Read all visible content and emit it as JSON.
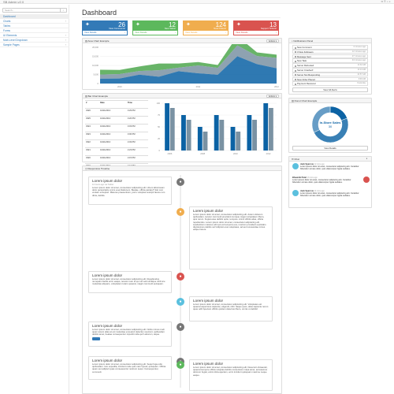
{
  "app": {
    "brand": "SB Admin v2.0"
  },
  "sidebar": {
    "search_placeholder": "Search...",
    "items": [
      {
        "label": "Dashboard"
      },
      {
        "label": "Charts"
      },
      {
        "label": "Tables"
      },
      {
        "label": "Forms"
      },
      {
        "label": "UI Elements"
      },
      {
        "label": "Multi-Level Dropdown"
      },
      {
        "label": "Sample Pages"
      }
    ]
  },
  "page": {
    "title": "Dashboard"
  },
  "stats": [
    {
      "num": "26",
      "label": "New Comments!",
      "footer": "View Details",
      "color": "#337ab7",
      "icon": "comments-icon"
    },
    {
      "num": "12",
      "label": "New Tasks!",
      "footer": "View Details",
      "color": "#5cb85c",
      "icon": "tasks-icon"
    },
    {
      "num": "124",
      "label": "New Orders!",
      "footer": "View Details",
      "color": "#f0ad4e",
      "icon": "cart-icon"
    },
    {
      "num": "13",
      "label": "Support Tickets!",
      "footer": "View Details",
      "color": "#d9534f",
      "icon": "support-icon"
    }
  ],
  "area_chart": {
    "header": "Area Chart Example",
    "actions": "Actions",
    "chart_data": {
      "type": "area",
      "x": [
        "2010 Q1",
        "2010 Q2",
        "2010 Q3",
        "2010 Q4",
        "2011 Q1",
        "2011 Q2",
        "2011 Q3",
        "2011 Q4",
        "2012 Q1",
        "2012 Q2"
      ],
      "xticks": [
        "2010",
        "2011",
        "2012"
      ],
      "yticks": [
        "0",
        "5,000",
        "10,000",
        "15,000",
        "20,000"
      ],
      "ylim": [
        0,
        20000
      ],
      "series": [
        {
          "values": [
            2666,
            2778,
            4912,
            3767,
            6810,
            5670,
            4820,
            15073,
            10687,
            8432
          ],
          "color": "#0b62a4"
        },
        {
          "values": [
            2294,
            2441,
            1969,
            3597,
            1914,
            4293,
            3795,
            5967,
            4460,
            5713
          ],
          "color": "#7a92a3"
        },
        {
          "values": [
            2647,
            2294,
            2501,
            3689,
            2293,
            1881,
            1588,
            5175,
            2028,
            1791
          ],
          "color": "#4da74d"
        }
      ]
    }
  },
  "bar_chart": {
    "header": "Bar Chart Example",
    "actions": "Actions",
    "table": {
      "headers": [
        "#",
        "Date",
        "Time"
      ],
      "rows": [
        [
          "3326",
          "10/21/2013",
          "3:29 PM"
        ],
        [
          "3325",
          "10/21/2013",
          "3:20 PM"
        ],
        [
          "3324",
          "10/21/2013",
          "3:03 PM"
        ],
        [
          "3323",
          "10/21/2013",
          "3:00 PM"
        ],
        [
          "3322",
          "10/21/2013",
          "2:49 PM"
        ],
        [
          "3321",
          "10/21/2013",
          "2:23 PM"
        ],
        [
          "3320",
          "10/21/2013",
          "2:15 PM"
        ],
        [
          "3319",
          "10/21/2013",
          "2:13 PM"
        ]
      ]
    },
    "chart_data": {
      "type": "bar",
      "categories": [
        "2006",
        "2007",
        "2008",
        "2009",
        "2010",
        "2011",
        "2012"
      ],
      "xticks": [
        "2006",
        "2008",
        "2010",
        "2012"
      ],
      "yticks": [
        "0",
        "25",
        "50",
        "75",
        "100"
      ],
      "ylim": [
        0,
        100
      ],
      "series": [
        {
          "values": [
            100,
            75,
            50,
            75,
            50,
            75,
            100
          ],
          "color": "#0b62a4"
        },
        {
          "values": [
            90,
            65,
            40,
            65,
            40,
            65,
            90
          ],
          "color": "#7a92a3"
        }
      ]
    }
  },
  "notifications": {
    "header": "Notifications Panel",
    "items": [
      {
        "label": "New Comment",
        "time": "4 minutes ago"
      },
      {
        "label": "3 New Followers",
        "time": "12 minutes ago"
      },
      {
        "label": "Message Sent",
        "time": "27 minutes ago"
      },
      {
        "label": "New Task",
        "time": "43 minutes ago"
      },
      {
        "label": "Server Rebooted",
        "time": "11:32 AM"
      },
      {
        "label": "Server Crashed!",
        "time": "11:13 AM"
      },
      {
        "label": "Server Not Responding",
        "time": "10:57 AM"
      },
      {
        "label": "New Order Placed",
        "time": "9:49 AM"
      },
      {
        "label": "Payment Received",
        "time": "Yesterday"
      }
    ],
    "view_all": "View All Alerts"
  },
  "donut": {
    "header": "Donut Chart Example",
    "center_label": "In-Store Sales",
    "center_value": "30",
    "chart_data": {
      "type": "pie",
      "labels": [
        "Download Sales",
        "In-Store Sales",
        "Mail-Order Sales"
      ],
      "values": [
        12,
        30,
        20
      ]
    },
    "details": "View Details"
  },
  "timeline": {
    "header": "Responsive Timeline",
    "items": [
      {
        "title": "Lorem ipsum dolor",
        "sub": "11 hours ago via Twitter",
        "body": "Lorem ipsum dolor sit amet, consectetur adipisicing elit. Libero laboriosam dolor perspiciatis omnis exercitationem. Beatae, officia pariatur? Est cum veniam excepturi. Maiores praesentium, porro voluptas suscipit facere rem dicta, debitis.",
        "side": "left",
        "top": 224,
        "height": 36,
        "dot": "#777",
        "icon": "check-icon"
      },
      {
        "title": "Lorem ipsum dolor",
        "sub": "",
        "body": "Lorem ipsum dolor sit amet, consectetur adipisicing elit. Autem dolorem quibusdam, tenetur commodi provident cumque magni voluptatem libero, quis rerum. Fugiat esse debitis optio, tempore. Animi officiis alias, officia repellendus. Lorem ipsum dolor sit amet, consectetur adipisicing elit. Laudantium maiores odit qui est tempora eos, nostrum provident explicabo dignissimos debitis vel! Adipisci eius voluptates, ad aut recusandae minus eaque facere.",
        "side": "right",
        "top": 262,
        "height": 80,
        "dot": "#f0ad4e",
        "icon": "credit-card-icon"
      },
      {
        "title": "Lorem ipsum dolor",
        "sub": "",
        "body": "Lorem ipsum dolor sit amet, consectetur adipisicing elit. Repellendus numquam facilis enim eaque, tenetur nam id qui vel velit similique nihil iure molestias aliquam, voluptatem totam quaerat, magni commodi quisquam.",
        "side": "left",
        "top": 344,
        "height": 28,
        "dot": "#d9534f",
        "icon": "bomb-icon"
      },
      {
        "title": "Lorem ipsum dolor",
        "sub": "",
        "body": "Lorem ipsum dolor sit amet, consectetur adipisicing elit. Voluptates est quaerat asperiores sapiente, eligendi, nihil. Itaque quos, alias sapiente rerum quas odit! Aperiam officiis quidem delectus libero, omnis ut debitis!",
        "side": "right",
        "top": 376,
        "height": 32,
        "dot": "#5bc0de",
        "icon": "save-icon"
      },
      {
        "title": "Lorem ipsum dolor",
        "sub": "",
        "body": "Lorem ipsum dolor sit amet, consectetur adipisicing elit. Nobis minus modi quam ipsum alias at est molestiae excepturi delectus nesciunt, quibusdam debitis amet, beatae consequuntur impedit nulla qui! Laborum, atque.",
        "side": "left",
        "top": 408,
        "height": 32,
        "dot": "#777",
        "icon": "gear-icon",
        "has_button": true
      },
      {
        "title": "Lorem ipsum dolor",
        "sub": "",
        "body": "Lorem ipsum dolor sit amet, consectetur adipisicing elit. Sequi fuga odio quibusdam. Iure expedita, incidunt unde quis nam! Quod, quisquam. Officia quam qui adipisci quas consequuntur nostrum sequi. Consequuntur, commodi.",
        "side": "left",
        "top": 452,
        "height": 30,
        "dot": "#777",
        "icon": "gear-icon"
      },
      {
        "title": "Lorem ipsum dolor",
        "sub": "",
        "body": "Lorem ipsum dolor sit amet, consectetur adipisicing elit. Deserunt obcaecati, quaerat tempore officia voluptas debitis consectetur culpa amet, accusamus dolorum fugiat, animi dicta aperiam, enim incidunt quisquam maxime neque eaque.",
        "side": "right",
        "top": 456,
        "height": 40,
        "dot": "#5cb85c",
        "icon": "thumbs-up-icon"
      }
    ]
  },
  "chat": {
    "header": "Chat",
    "messages": [
      {
        "name": "Jack Sparrow",
        "time": "12 mins ago",
        "text": "Lorem ipsum dolor sit amet, consectetur adipiscing elit. Curabitur bibendum ornare dolor, quis ullamcorper ligula sodales.",
        "side": "left",
        "color": "#5bc0de"
      },
      {
        "name": "Bhaumik Patel",
        "time": "13 mins ago",
        "text": "Lorem ipsum dolor sit amet, consectetur adipiscing elit. Curabitur bibendum ornare dolor, quis ullamcorper ligula sodales.",
        "side": "right",
        "color": "#d9534f"
      },
      {
        "name": "Jack Sparrow",
        "time": "14 mins ago",
        "text": "Lorem ipsum dolor sit amet, consectetur adipiscing elit. Curabitur bibendum ornare dolor, quis ullamcorper ligula sodales.",
        "side": "left",
        "color": "#5bc0de"
      }
    ]
  }
}
